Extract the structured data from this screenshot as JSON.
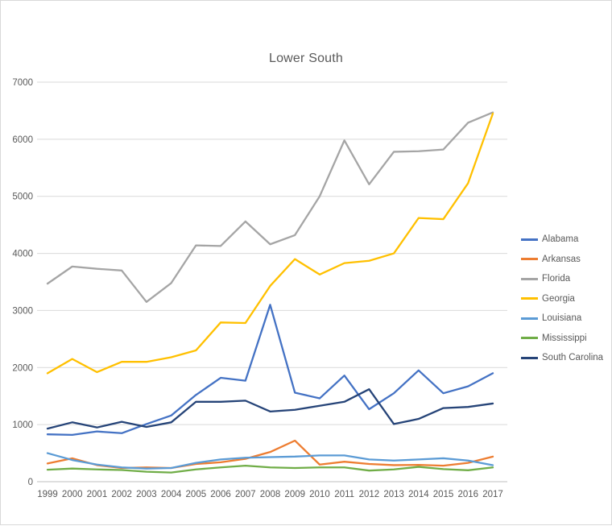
{
  "chart_data": {
    "type": "line",
    "title": "Lower South",
    "x": [
      1999,
      2000,
      2001,
      2002,
      2003,
      2004,
      2005,
      2006,
      2007,
      2008,
      2009,
      2010,
      2011,
      2012,
      2013,
      2014,
      2015,
      2016,
      2017
    ],
    "series": [
      {
        "name": "Alabama",
        "color": "#4472C4",
        "values": [
          830,
          820,
          880,
          850,
          1010,
          1160,
          1520,
          1820,
          1770,
          3100,
          1560,
          1460,
          1860,
          1270,
          1550,
          1950,
          1550,
          1670,
          1900
        ]
      },
      {
        "name": "Arkansas",
        "color": "#ED7D31",
        "values": [
          320,
          410,
          290,
          240,
          250,
          240,
          310,
          340,
          400,
          520,
          720,
          300,
          350,
          310,
          290,
          295,
          280,
          330,
          440
        ]
      },
      {
        "name": "Florida",
        "color": "#A5A5A5",
        "values": [
          3470,
          3770,
          3730,
          3700,
          3150,
          3480,
          4140,
          4130,
          4560,
          4160,
          4320,
          5000,
          5980,
          5210,
          5780,
          5790,
          5820,
          6290,
          6470
        ]
      },
      {
        "name": "Georgia",
        "color": "#FFC000",
        "values": [
          1900,
          2150,
          1920,
          2100,
          2100,
          2180,
          2300,
          2790,
          2780,
          3430,
          3900,
          3630,
          3830,
          3870,
          4000,
          4620,
          4600,
          5230,
          6450
        ]
      },
      {
        "name": "Louisiana",
        "color": "#5B9BD5",
        "values": [
          500,
          380,
          300,
          250,
          230,
          240,
          330,
          390,
          420,
          430,
          440,
          460,
          460,
          390,
          370,
          390,
          410,
          370,
          290
        ]
      },
      {
        "name": "Mississippi",
        "color": "#70AD47",
        "values": [
          210,
          230,
          215,
          205,
          175,
          160,
          215,
          250,
          280,
          250,
          240,
          250,
          250,
          195,
          215,
          260,
          220,
          200,
          250
        ]
      },
      {
        "name": "South Carolina",
        "color": "#264478",
        "values": [
          930,
          1040,
          950,
          1050,
          960,
          1040,
          1400,
          1400,
          1420,
          1230,
          1260,
          1330,
          1400,
          1620,
          1010,
          1100,
          1290,
          1310,
          1370
        ]
      }
    ],
    "ylim": [
      0,
      7000
    ],
    "yticks": [
      0,
      1000,
      2000,
      3000,
      4000,
      5000,
      6000,
      7000
    ],
    "grid": true,
    "legend_position": "right",
    "colors": {
      "grid": "#D9D9D9",
      "axis": "#BFBFBF",
      "tick_text": "#595959",
      "title_text": "#595959",
      "background": "#FFFFFF"
    }
  }
}
